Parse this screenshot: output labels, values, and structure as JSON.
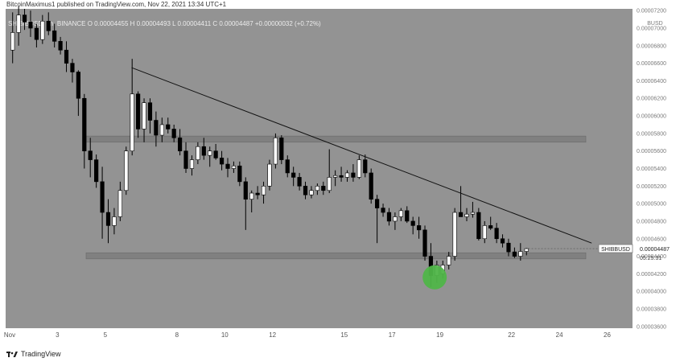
{
  "caption": "BitcoinMaximus1 published on TradingView.com, Nov 22, 2021 13:34 UTC+1",
  "symbol_line": "SHIB/BUSD, 6h, BINANCE  O 0.00004455  H 0.00004493  L 0.00004411  C 0.00004487  +0.00000032 (+0.72%)",
  "currency_label": "BUSD",
  "footer_brand": "TradingView",
  "colors": {
    "plot_bg": "#939393",
    "candle_up": "#ffffff",
    "candle_down": "#000000",
    "zone": "#808080",
    "highlight": "#4fb548",
    "axis_text": "#7a7a7a"
  },
  "price_tag": {
    "symbol": "SHIBBUSD",
    "price": "0.00004487",
    "countdown": "05:25:31"
  },
  "chart_data": {
    "type": "candlestick",
    "xlabel": "",
    "ylabel": "",
    "ylim": [
      3.58e-05,
      7.22e-05
    ],
    "y_ticks": [
      "0.00007200",
      "0.00007000",
      "0.00006800",
      "0.00006600",
      "0.00006400",
      "0.00006200",
      "0.00006000",
      "0.00005800",
      "0.00005600",
      "0.00005400",
      "0.00005200",
      "0.00005000",
      "0.00004800",
      "0.00004600",
      "0.00004400",
      "0.00004200",
      "0.00004000",
      "0.00003800",
      "0.00003600"
    ],
    "x_ticks": [
      {
        "label": "Nov",
        "date": "2021-11-01"
      },
      {
        "label": "3",
        "date": "2021-11-03"
      },
      {
        "label": "5",
        "date": "2021-11-05"
      },
      {
        "label": "8",
        "date": "2021-11-08"
      },
      {
        "label": "10",
        "date": "2021-11-10"
      },
      {
        "label": "12",
        "date": "2021-11-12"
      },
      {
        "label": "15",
        "date": "2021-11-15"
      },
      {
        "label": "17",
        "date": "2021-11-17"
      },
      {
        "label": "19",
        "date": "2021-11-19"
      },
      {
        "label": "22",
        "date": "2021-11-22"
      },
      {
        "label": "24",
        "date": "2021-11-24"
      },
      {
        "label": "26",
        "date": "2021-11-26"
      }
    ],
    "candles": [
      {
        "t": "2021-11-01 00:00",
        "o": 6750,
        "h": 7180,
        "l": 6600,
        "c": 6950
      },
      {
        "t": "2021-11-01 06:00",
        "o": 6950,
        "h": 7250,
        "l": 6800,
        "c": 7150
      },
      {
        "t": "2021-11-01 12:00",
        "o": 7150,
        "h": 7220,
        "l": 6980,
        "c": 7070
      },
      {
        "t": "2021-11-01 18:00",
        "o": 7070,
        "h": 7200,
        "l": 6900,
        "c": 7000
      },
      {
        "t": "2021-11-02 00:00",
        "o": 7000,
        "h": 7050,
        "l": 6780,
        "c": 6870
      },
      {
        "t": "2021-11-02 06:00",
        "o": 6870,
        "h": 7150,
        "l": 6820,
        "c": 7080
      },
      {
        "t": "2021-11-02 12:00",
        "o": 7080,
        "h": 7180,
        "l": 6920,
        "c": 6970
      },
      {
        "t": "2021-11-02 18:00",
        "o": 6970,
        "h": 7050,
        "l": 6780,
        "c": 6850
      },
      {
        "t": "2021-11-03 00:00",
        "o": 6850,
        "h": 6900,
        "l": 6700,
        "c": 6750
      },
      {
        "t": "2021-11-03 06:00",
        "o": 6750,
        "h": 6850,
        "l": 6500,
        "c": 6600
      },
      {
        "t": "2021-11-03 12:00",
        "o": 6600,
        "h": 6650,
        "l": 6380,
        "c": 6500
      },
      {
        "t": "2021-11-03 18:00",
        "o": 6500,
        "h": 6520,
        "l": 6000,
        "c": 6200
      },
      {
        "t": "2021-11-04 00:00",
        "o": 6200,
        "h": 6250,
        "l": 5400,
        "c": 5600
      },
      {
        "t": "2021-11-04 06:00",
        "o": 5600,
        "h": 5750,
        "l": 5300,
        "c": 5500
      },
      {
        "t": "2021-11-04 12:00",
        "o": 5500,
        "h": 5560,
        "l": 5180,
        "c": 5250
      },
      {
        "t": "2021-11-04 18:00",
        "o": 5250,
        "h": 5420,
        "l": 4600,
        "c": 4900
      },
      {
        "t": "2021-11-05 00:00",
        "o": 4900,
        "h": 5050,
        "l": 4550,
        "c": 4750
      },
      {
        "t": "2021-11-05 06:00",
        "o": 4750,
        "h": 4950,
        "l": 4650,
        "c": 4850
      },
      {
        "t": "2021-11-05 12:00",
        "o": 4850,
        "h": 5250,
        "l": 4800,
        "c": 5150
      },
      {
        "t": "2021-11-05 18:00",
        "o": 5150,
        "h": 5650,
        "l": 5100,
        "c": 5600
      },
      {
        "t": "2021-11-06 00:00",
        "o": 5600,
        "h": 6650,
        "l": 5550,
        "c": 6250
      },
      {
        "t": "2021-11-06 06:00",
        "o": 6250,
        "h": 6280,
        "l": 5750,
        "c": 5850
      },
      {
        "t": "2021-11-06 12:00",
        "o": 5850,
        "h": 6200,
        "l": 5700,
        "c": 6150
      },
      {
        "t": "2021-11-06 18:00",
        "o": 6150,
        "h": 6200,
        "l": 5800,
        "c": 5950
      },
      {
        "t": "2021-11-07 00:00",
        "o": 5950,
        "h": 6050,
        "l": 5650,
        "c": 5780
      },
      {
        "t": "2021-11-07 06:00",
        "o": 5780,
        "h": 5980,
        "l": 5700,
        "c": 5900
      },
      {
        "t": "2021-11-07 12:00",
        "o": 5900,
        "h": 5980,
        "l": 5800,
        "c": 5850
      },
      {
        "t": "2021-11-07 18:00",
        "o": 5850,
        "h": 5900,
        "l": 5700,
        "c": 5750
      },
      {
        "t": "2021-11-08 00:00",
        "o": 5750,
        "h": 5850,
        "l": 5550,
        "c": 5600
      },
      {
        "t": "2021-11-08 06:00",
        "o": 5600,
        "h": 5700,
        "l": 5350,
        "c": 5400
      },
      {
        "t": "2021-11-08 12:00",
        "o": 5400,
        "h": 5550,
        "l": 5320,
        "c": 5500
      },
      {
        "t": "2021-11-08 18:00",
        "o": 5500,
        "h": 5700,
        "l": 5450,
        "c": 5650
      },
      {
        "t": "2021-11-09 00:00",
        "o": 5650,
        "h": 5750,
        "l": 5500,
        "c": 5550
      },
      {
        "t": "2021-11-09 06:00",
        "o": 5550,
        "h": 5650,
        "l": 5420,
        "c": 5600
      },
      {
        "t": "2021-11-09 12:00",
        "o": 5600,
        "h": 5680,
        "l": 5500,
        "c": 5520
      },
      {
        "t": "2021-11-09 18:00",
        "o": 5520,
        "h": 5600,
        "l": 5380,
        "c": 5450
      },
      {
        "t": "2021-11-10 00:00",
        "o": 5450,
        "h": 5520,
        "l": 5300,
        "c": 5400
      },
      {
        "t": "2021-11-10 06:00",
        "o": 5400,
        "h": 5480,
        "l": 5350,
        "c": 5430
      },
      {
        "t": "2021-11-10 12:00",
        "o": 5430,
        "h": 5480,
        "l": 5200,
        "c": 5250
      },
      {
        "t": "2021-11-10 18:00",
        "o": 5250,
        "h": 5300,
        "l": 4700,
        "c": 5050
      },
      {
        "t": "2021-11-11 00:00",
        "o": 5050,
        "h": 5150,
        "l": 4900,
        "c": 5120
      },
      {
        "t": "2021-11-11 06:00",
        "o": 5120,
        "h": 5200,
        "l": 5050,
        "c": 5100
      },
      {
        "t": "2021-11-11 12:00",
        "o": 5100,
        "h": 5250,
        "l": 5000,
        "c": 5200
      },
      {
        "t": "2021-11-11 18:00",
        "o": 5200,
        "h": 5500,
        "l": 5150,
        "c": 5450
      },
      {
        "t": "2021-11-12 00:00",
        "o": 5450,
        "h": 5800,
        "l": 5400,
        "c": 5750
      },
      {
        "t": "2021-11-12 06:00",
        "o": 5750,
        "h": 5780,
        "l": 5450,
        "c": 5500
      },
      {
        "t": "2021-11-12 12:00",
        "o": 5500,
        "h": 5550,
        "l": 5300,
        "c": 5350
      },
      {
        "t": "2021-11-12 18:00",
        "o": 5350,
        "h": 5420,
        "l": 5200,
        "c": 5300
      },
      {
        "t": "2021-11-13 00:00",
        "o": 5300,
        "h": 5350,
        "l": 5150,
        "c": 5200
      },
      {
        "t": "2021-11-13 06:00",
        "o": 5200,
        "h": 5250,
        "l": 5050,
        "c": 5100
      },
      {
        "t": "2021-11-13 12:00",
        "o": 5100,
        "h": 5200,
        "l": 5060,
        "c": 5150
      },
      {
        "t": "2021-11-13 18:00",
        "o": 5150,
        "h": 5230,
        "l": 5100,
        "c": 5200
      },
      {
        "t": "2021-11-14 00:00",
        "o": 5200,
        "h": 5250,
        "l": 5100,
        "c": 5150
      },
      {
        "t": "2021-11-14 06:00",
        "o": 5150,
        "h": 5620,
        "l": 5120,
        "c": 5300
      },
      {
        "t": "2021-11-14 12:00",
        "o": 5300,
        "h": 5380,
        "l": 5200,
        "c": 5320
      },
      {
        "t": "2021-11-14 18:00",
        "o": 5320,
        "h": 5420,
        "l": 5250,
        "c": 5300
      },
      {
        "t": "2021-11-15 00:00",
        "o": 5300,
        "h": 5380,
        "l": 5250,
        "c": 5350
      },
      {
        "t": "2021-11-15 06:00",
        "o": 5350,
        "h": 5450,
        "l": 5250,
        "c": 5300
      },
      {
        "t": "2021-11-15 12:00",
        "o": 5300,
        "h": 5550,
        "l": 5280,
        "c": 5500
      },
      {
        "t": "2021-11-15 18:00",
        "o": 5500,
        "h": 5560,
        "l": 5300,
        "c": 5350
      },
      {
        "t": "2021-11-16 00:00",
        "o": 5350,
        "h": 5400,
        "l": 5000,
        "c": 5050
      },
      {
        "t": "2021-11-16 06:00",
        "o": 5050,
        "h": 5100,
        "l": 4550,
        "c": 4950
      },
      {
        "t": "2021-11-16 12:00",
        "o": 4950,
        "h": 5000,
        "l": 4850,
        "c": 4900
      },
      {
        "t": "2021-11-16 18:00",
        "o": 4900,
        "h": 4950,
        "l": 4750,
        "c": 4800
      },
      {
        "t": "2021-11-17 00:00",
        "o": 4800,
        "h": 4900,
        "l": 4700,
        "c": 4850
      },
      {
        "t": "2021-11-17 06:00",
        "o": 4850,
        "h": 4950,
        "l": 4800,
        "c": 4920
      },
      {
        "t": "2021-11-17 12:00",
        "o": 4920,
        "h": 4970,
        "l": 4780,
        "c": 4800
      },
      {
        "t": "2021-11-17 18:00",
        "o": 4800,
        "h": 4850,
        "l": 4650,
        "c": 4750
      },
      {
        "t": "2021-11-18 00:00",
        "o": 4750,
        "h": 4850,
        "l": 4600,
        "c": 4700
      },
      {
        "t": "2021-11-18 06:00",
        "o": 4700,
        "h": 4750,
        "l": 4350,
        "c": 4400
      },
      {
        "t": "2021-11-18 12:00",
        "o": 4400,
        "h": 4550,
        "l": 4050,
        "c": 4180
      },
      {
        "t": "2021-11-18 18:00",
        "o": 4180,
        "h": 4350,
        "l": 4100,
        "c": 4300
      },
      {
        "t": "2021-11-19 00:00",
        "o": 4200,
        "h": 4350,
        "l": 4150,
        "c": 4300
      },
      {
        "t": "2021-11-19 06:00",
        "o": 4300,
        "h": 4450,
        "l": 4250,
        "c": 4400
      },
      {
        "t": "2021-11-19 12:00",
        "o": 4400,
        "h": 4950,
        "l": 4350,
        "c": 4900
      },
      {
        "t": "2021-11-19 18:00",
        "o": 4900,
        "h": 5200,
        "l": 4850,
        "c": 4850
      },
      {
        "t": "2021-11-20 00:00",
        "o": 4850,
        "h": 4950,
        "l": 4800,
        "c": 4880
      },
      {
        "t": "2021-11-20 06:00",
        "o": 4880,
        "h": 5020,
        "l": 4840,
        "c": 4900
      },
      {
        "t": "2021-11-20 12:00",
        "o": 4900,
        "h": 4950,
        "l": 4580,
        "c": 4600
      },
      {
        "t": "2021-11-20 18:00",
        "o": 4600,
        "h": 4800,
        "l": 4550,
        "c": 4750
      },
      {
        "t": "2021-11-21 00:00",
        "o": 4750,
        "h": 4850,
        "l": 4700,
        "c": 4720
      },
      {
        "t": "2021-11-21 06:00",
        "o": 4720,
        "h": 4780,
        "l": 4550,
        "c": 4600
      },
      {
        "t": "2021-11-21 12:00",
        "o": 4600,
        "h": 4650,
        "l": 4500,
        "c": 4550
      },
      {
        "t": "2021-11-21 18:00",
        "o": 4550,
        "h": 4600,
        "l": 4400,
        "c": 4450
      },
      {
        "t": "2021-11-22 00:00",
        "o": 4450,
        "h": 4500,
        "l": 4380,
        "c": 4400
      },
      {
        "t": "2021-11-22 06:00",
        "o": 4400,
        "h": 4550,
        "l": 4350,
        "c": 4455
      },
      {
        "t": "2021-11-22 12:00",
        "o": 4455,
        "h": 4493,
        "l": 4411,
        "c": 4487
      }
    ],
    "price_scale_note": "candle values are in units of 1e-8 BUSD",
    "trendline": {
      "from": {
        "t": "2021-11-06 00:00",
        "price": 6.55e-05
      },
      "to": {
        "t": "2021-11-25 06:00",
        "price": 4.55e-05
      }
    },
    "zones": [
      {
        "name": "resistance",
        "from": 5.7e-05,
        "to": 5.77e-05
      },
      {
        "name": "support",
        "from": 4.37e-05,
        "to": 4.44e-05
      }
    ],
    "highlight": {
      "t": "2021-11-18 18:00",
      "price": 4.16e-05
    }
  }
}
